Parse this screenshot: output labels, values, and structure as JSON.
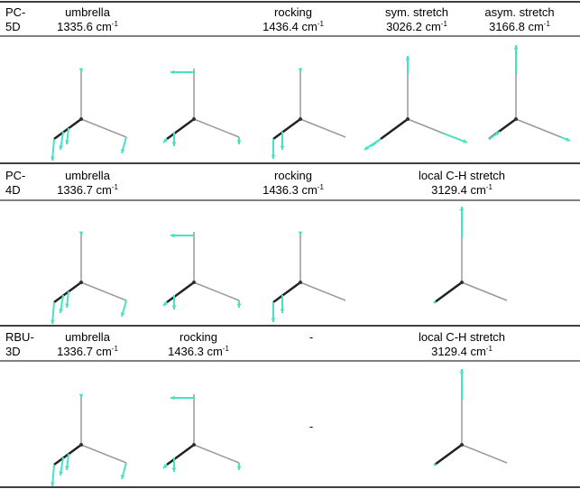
{
  "sections": [
    {
      "label": [
        "PC-",
        "5D"
      ],
      "modes": [
        {
          "name": "umbrella",
          "freq": "1335.6 cm",
          "exp": "-1"
        },
        {
          "name": "rocking",
          "freq": "1436.4 cm",
          "exp": "-1"
        },
        {
          "name": "sym. stretch",
          "freq": "3026.2 cm",
          "exp": "-1"
        },
        {
          "name": "asym. stretch",
          "freq": "3166.8 cm",
          "exp": "-1"
        }
      ]
    },
    {
      "label": [
        "PC-",
        "4D"
      ],
      "modes": [
        {
          "name": "umbrella",
          "freq": "1336.7 cm",
          "exp": "-1"
        },
        {
          "name": "rocking",
          "freq": "1436.3 cm",
          "exp": "-1"
        },
        {
          "name": "local C-H stretch",
          "freq": "3129.4 cm",
          "exp": "-1"
        }
      ]
    },
    {
      "label": [
        "RBU-",
        "3D"
      ],
      "modes": [
        {
          "name": "umbrella",
          "freq": "1336.7 cm",
          "exp": "-1"
        },
        {
          "name": "rocking",
          "freq": "1436.3 cm",
          "exp": "-1"
        },
        {
          "name": "-"
        },
        {
          "name": "local C-H stretch",
          "freq": "3129.4 cm",
          "exp": "-1"
        }
      ],
      "figure_note": "-"
    }
  ]
}
